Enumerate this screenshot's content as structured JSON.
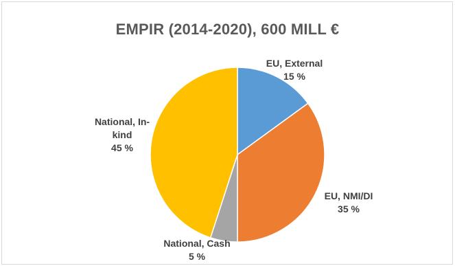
{
  "chart_data": {
    "type": "pie",
    "title": "EMPIR (2014-2020), 600 MILL €",
    "slices": [
      {
        "name": "EU, External",
        "value": 15,
        "value_label": "15 %",
        "label_lines": [
          "EU, External",
          "15 %"
        ],
        "color": "#5b9bd5"
      },
      {
        "name": "EU, NMI/DI",
        "value": 35,
        "value_label": "35 %",
        "label_lines": [
          "EU, NMI/DI",
          "35 %"
        ],
        "color": "#ed7d31"
      },
      {
        "name": "National, Cash",
        "value": 5,
        "value_label": "5 %",
        "label_lines": [
          "National, Cash",
          "5 %"
        ],
        "color": "#a5a5a5"
      },
      {
        "name": "National, In-kind",
        "value": 45,
        "value_label": "45 %",
        "label_lines": [
          "National, In-",
          "kind",
          "45 %"
        ],
        "color": "#ffc000"
      }
    ],
    "legend": "none",
    "start_angle": "12 o'clock",
    "direction": "clockwise"
  }
}
